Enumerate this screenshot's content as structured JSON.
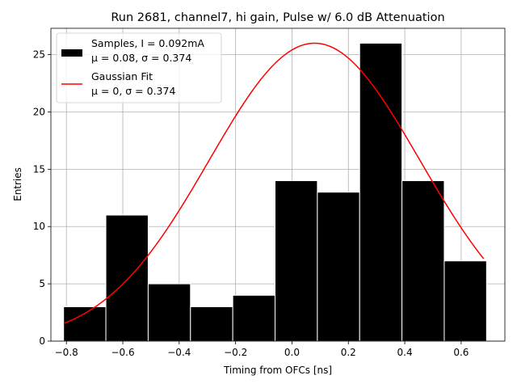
{
  "chart_data": {
    "type": "bar",
    "title": "Run 2681, channel7, hi gain, Pulse w/ 6.0 dB Attenuation",
    "xlabel": "Timing from OFCs [ns]",
    "ylabel": "Entries",
    "xlim": [
      -0.855,
      0.755
    ],
    "ylim": [
      0,
      27.3
    ],
    "grid": true,
    "xticks": [
      -0.8,
      -0.6,
      -0.4,
      -0.2,
      0.0,
      0.2,
      0.4,
      0.6
    ],
    "xtick_labels": [
      "−0.8",
      "−0.6",
      "−0.4",
      "−0.2",
      "0.0",
      "0.2",
      "0.4",
      "0.6"
    ],
    "yticks": [
      0,
      5,
      10,
      15,
      20,
      25
    ],
    "ytick_labels": [
      "0",
      "5",
      "10",
      "15",
      "20",
      "25"
    ],
    "histogram": {
      "name": "Samples, I = 0.092mA",
      "stats": "μ = 0.08, σ = 0.374",
      "bin_edges": [
        -0.81,
        -0.66,
        -0.51,
        -0.36,
        -0.21,
        -0.06,
        0.09,
        0.24,
        0.39,
        0.54,
        0.69
      ],
      "counts": [
        3,
        11,
        5,
        3,
        4,
        14,
        13,
        26,
        14,
        7
      ],
      "color": "#000000"
    },
    "fit": {
      "name": "Gaussian Fit",
      "stats": "μ = 0, σ = 0.374",
      "mu": 0.08,
      "sigma": 0.374,
      "amplitude": 26.0,
      "x_range": [
        -0.81,
        0.68
      ],
      "color": "#ff0000"
    },
    "legend_position": "upper-left"
  }
}
